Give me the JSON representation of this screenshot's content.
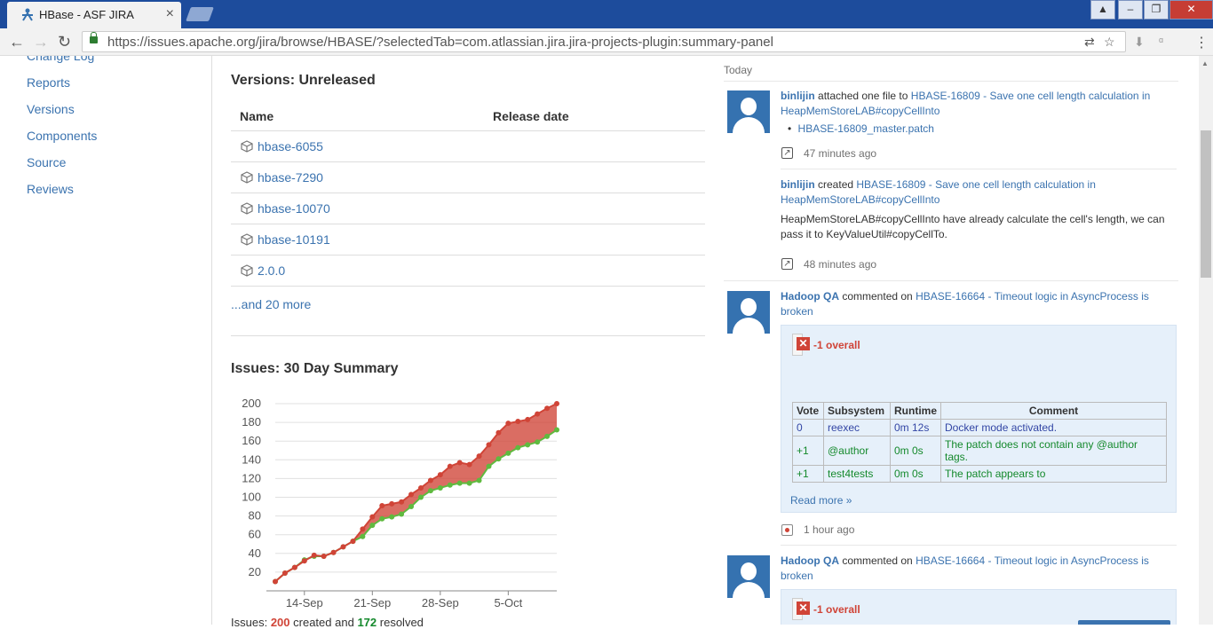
{
  "browser": {
    "tab_title": "HBase - ASF JIRA",
    "url": "https://issues.apache.org/jira/browse/HBASE/?selectedTab=com.atlassian.jira.jira-projects-plugin:summary-panel"
  },
  "leftnav": {
    "items": [
      "Change Log",
      "Reports",
      "Versions",
      "Components",
      "Source",
      "Reviews"
    ]
  },
  "versions": {
    "heading": "Versions: Unreleased",
    "col_name": "Name",
    "col_release": "Release date",
    "items": [
      "hbase-6055",
      "hbase-7290",
      "hbase-10070",
      "hbase-10191",
      "2.0.0"
    ],
    "more": "...and 20 more"
  },
  "issues": {
    "heading": "Issues: 30 Day Summary",
    "summary_prefix": "Issues:",
    "created_count": "200",
    "summary_middle": "created and",
    "resolved_count": "172",
    "summary_suffix": "resolved"
  },
  "chart_data": {
    "type": "area",
    "title": "",
    "xlabel": "",
    "ylabel": "",
    "ylim": [
      0,
      200
    ],
    "yticks": [
      20,
      40,
      60,
      80,
      100,
      120,
      140,
      160,
      180,
      200
    ],
    "x_tick_labels": [
      "14-Sep",
      "21-Sep",
      "28-Sep",
      "5-Oct"
    ],
    "x_tick_days": [
      3,
      10,
      17,
      24
    ],
    "grid": true,
    "legend": "none",
    "series": [
      {
        "key": "created",
        "color": "#d04437",
        "values": [
          10,
          19,
          25,
          32,
          38,
          37,
          41,
          47,
          53,
          66,
          79,
          91,
          93,
          95,
          103,
          110,
          118,
          124,
          133,
          137,
          135,
          144,
          156,
          169,
          179,
          181,
          183,
          189,
          195,
          200
        ]
      },
      {
        "key": "resolved",
        "color": "#5fba3f",
        "values": [
          10,
          19,
          25,
          33,
          37,
          37,
          41,
          47,
          53,
          58,
          70,
          77,
          79,
          82,
          90,
          100,
          107,
          110,
          113,
          115,
          115,
          118,
          133,
          141,
          147,
          153,
          156,
          159,
          165,
          172
        ]
      }
    ]
  },
  "stream": {
    "today_label": "Today",
    "entries": [
      {
        "user": "binlijin",
        "action": "attached one file to",
        "issue_link": "HBASE-16809 - Save one cell length calculation in HeapMemStoreLAB#copyCellInto",
        "attachment": "HBASE-16809_master.patch",
        "time": "47 minutes ago"
      },
      {
        "user": "binlijin",
        "action": "created",
        "issue_link": "HBASE-16809 - Save one cell length calculation in HeapMemStoreLAB#copyCellInto",
        "description": "HeapMemStoreLAB#copyCellInto have already calculate the cell's length, we can pass it to KeyValueUtil#copyCellTo.",
        "time": "48 minutes ago"
      },
      {
        "user": "Hadoop QA",
        "action": "commented on",
        "issue_link": "HBASE-16664 - Timeout logic in AsyncProcess is broken",
        "badge": "-1 overall",
        "table": {
          "headers": [
            "Vote",
            "Subsystem",
            "Runtime",
            "Comment"
          ],
          "rows": [
            [
              "0",
              "reexec",
              "0m 12s",
              "Docker mode activated."
            ],
            [
              "+1",
              "@author",
              "0m 0s",
              "The patch does not contain any @author tags."
            ],
            [
              "+1",
              "test4tests",
              "0m 0s",
              "The patch appears to"
            ]
          ]
        },
        "read_more": "Read more »",
        "time": "1 hour ago"
      },
      {
        "user": "Hadoop QA",
        "action": "commented on",
        "issue_link": "HBASE-16664 - Timeout logic in AsyncProcess is broken",
        "badge": "-1 overall"
      }
    ]
  }
}
